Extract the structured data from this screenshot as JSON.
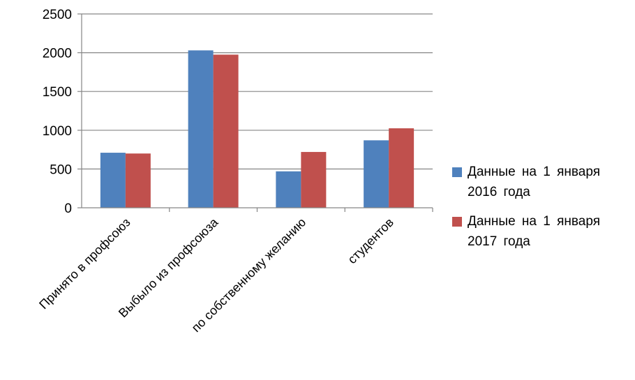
{
  "chart_data": {
    "type": "bar",
    "title": "",
    "xlabel": "",
    "ylabel": "",
    "ylim": [
      0,
      2500
    ],
    "yticks": [
      0,
      500,
      1000,
      1500,
      2000,
      2500
    ],
    "grid": true,
    "legend_position": "right",
    "categories": [
      "Принято в профсоюз",
      "Выбыло из профсоюза",
      "по собственному желанию",
      "студентов"
    ],
    "series": [
      {
        "name": "Данные на 1 января 2016 года",
        "color": "#4F81BD",
        "values": [
          710,
          2030,
          470,
          870
        ]
      },
      {
        "name": "Данные на 1 января 2017 года",
        "color": "#C0504D",
        "values": [
          700,
          1975,
          720,
          1025
        ]
      }
    ]
  }
}
